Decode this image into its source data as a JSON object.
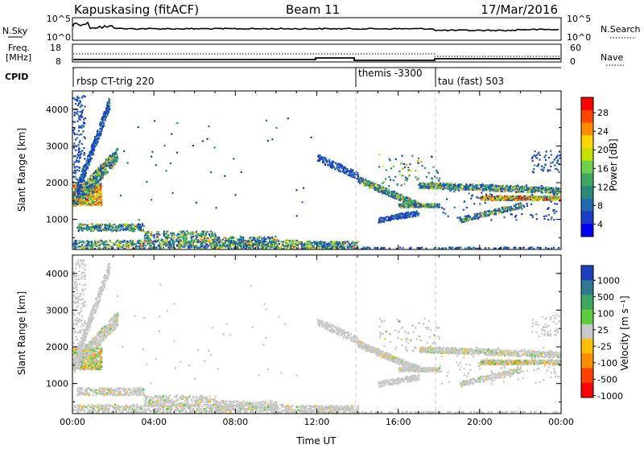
{
  "header": {
    "station": "Kapuskasing (fitACF)",
    "beam": "Beam 11",
    "date": "17/Mar/2016"
  },
  "noise_panel": {
    "left_label": "N.Sky",
    "right_label": "N.Search",
    "left_ticks": [
      "10^5",
      "10^0"
    ],
    "right_ticks": [
      "10^5",
      "10^0"
    ]
  },
  "freq_panel": {
    "left_label_1": "Freq.",
    "left_label_2": "[MHz]",
    "left_ticks": [
      "18",
      "8"
    ],
    "right_label": "Nave",
    "right_ticks": [
      "60",
      "0"
    ]
  },
  "cpid_panel": {
    "label": "CPID",
    "segments": [
      {
        "label": "rbsp CT-trig 220",
        "start_hour": 0
      },
      {
        "label": "themis -3300",
        "start_hour": 14
      },
      {
        "label": "tau (fast) 503",
        "start_hour": 18
      }
    ]
  },
  "chart_data": [
    {
      "type": "heatmap",
      "title": "",
      "ylabel": "Slant Range [km]",
      "xlabel": "",
      "ylim": [
        180,
        4500
      ],
      "xlim": [
        0,
        24
      ],
      "yticks": [
        "1000",
        "2000",
        "3000",
        "4000"
      ],
      "colorbar": {
        "label": "Power [dB]",
        "ticks": [
          "28",
          "24",
          "20",
          "16",
          "12",
          "8",
          "4"
        ],
        "colors": [
          "#ff0000",
          "#ff4500",
          "#ff8c00",
          "#ffd700",
          "#c8e000",
          "#6dd04a",
          "#3fa860",
          "#2a8a78",
          "#1f6ab0",
          "#1a3cc8",
          "#0000ff"
        ]
      }
    },
    {
      "type": "heatmap",
      "title": "",
      "ylabel": "Slant Range [km]",
      "xlabel": "Time UT",
      "ylim": [
        180,
        4500
      ],
      "xlim": [
        0,
        24
      ],
      "yticks": [
        "1000",
        "2000",
        "3000",
        "4000"
      ],
      "xticks": [
        "00:00",
        "04:00",
        "08:00",
        "12:00",
        "16:00",
        "20:00",
        "00:00"
      ],
      "colorbar": {
        "label": "Velocity [m s⁻¹]",
        "ticks": [
          "1000",
          "500",
          "100",
          "25",
          "-25",
          "-100",
          "-500",
          "-1000"
        ],
        "colors": [
          "#1f3fc0",
          "#2f7a8e",
          "#3fa860",
          "#5ccc3c",
          "#c8c8c8",
          "#ffc000",
          "#ff8c00",
          "#ff4000",
          "#ff0000"
        ]
      }
    }
  ]
}
